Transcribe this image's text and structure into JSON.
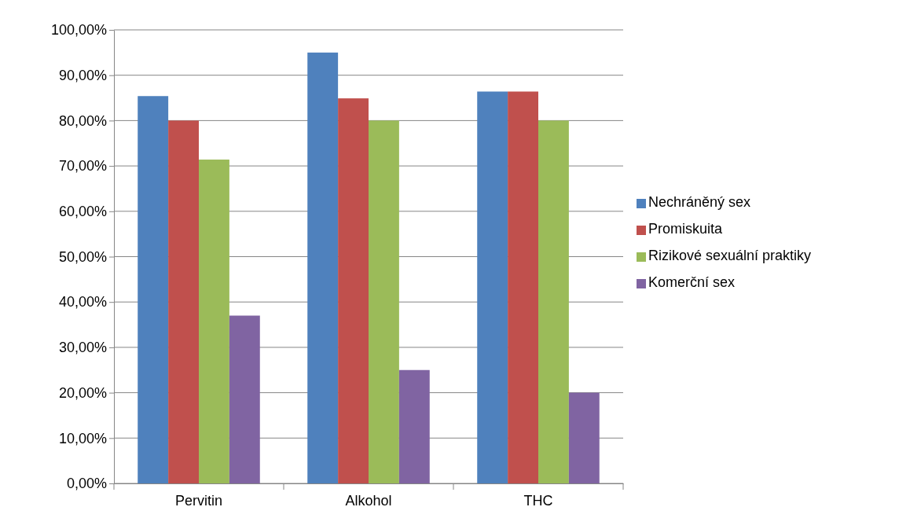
{
  "chart_data": {
    "type": "bar",
    "categories": [
      "Pervitin",
      "Alkohol",
      "THC"
    ],
    "series": [
      {
        "name": "Nechráněný sex",
        "color": "#4f81bd",
        "values": [
          85.4,
          95,
          86.4
        ]
      },
      {
        "name": "Promiskuita",
        "color": "#c0504d",
        "values": [
          80,
          84.9,
          86.4
        ]
      },
      {
        "name": "Rizikové sexuální praktiky",
        "color": "#9bbb59",
        "values": [
          71.4,
          80,
          80
        ]
      },
      {
        "name": "Komerční sex",
        "color": "#8064a2",
        "values": [
          37,
          25,
          20
        ]
      }
    ],
    "ylim": [
      0,
      100
    ],
    "yticks": [
      {
        "value": 0,
        "label": "0,00%"
      },
      {
        "value": 10,
        "label": "10,00%"
      },
      {
        "value": 20,
        "label": "20,00%"
      },
      {
        "value": 30,
        "label": "30,00%"
      },
      {
        "value": 40,
        "label": "40,00%"
      },
      {
        "value": 50,
        "label": "50,00%"
      },
      {
        "value": 60,
        "label": "60,00%"
      },
      {
        "value": 70,
        "label": "70,00%"
      },
      {
        "value": 80,
        "label": "80,00%"
      },
      {
        "value": 90,
        "label": "90,00%"
      },
      {
        "value": 100,
        "label": "100,00%"
      }
    ],
    "grid": "y",
    "legend": "right"
  }
}
